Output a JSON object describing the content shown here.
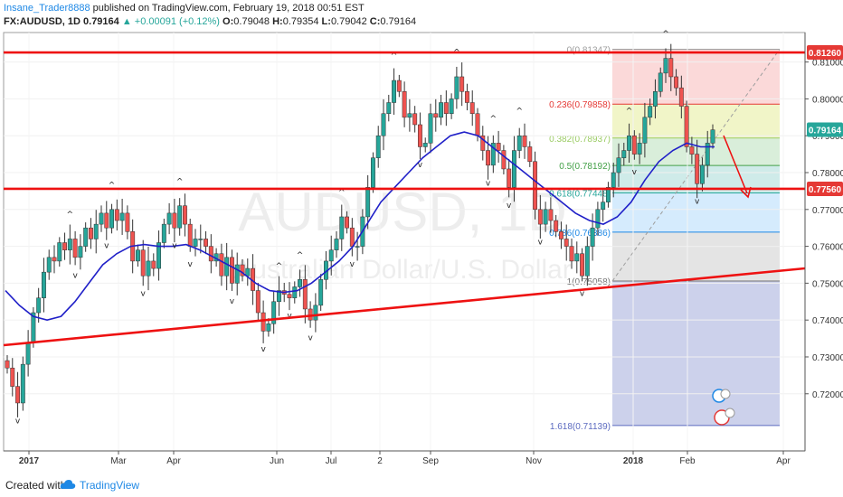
{
  "header": {
    "author": "Insane_Trader8888",
    "published": "published on TradingView.com, February 19, 2018 00:51 EST",
    "symbol": "FX:AUDUSD, 1D",
    "last": "0.79164",
    "change": "▲ +0.00091 (+0.12%)",
    "o_label": "O:",
    "o_val": "0.79048",
    "h_label": "H:",
    "h_val": "0.79354",
    "l_label": "L:",
    "l_val": "0.79042",
    "c_label": "C:",
    "c_val": "0.79164"
  },
  "watermark": {
    "symbol": "AUDUSD, 1D",
    "description": "Australian Dollar/U.S. Dollar"
  },
  "footer": {
    "created_with": "Created with",
    "brand": "TradingView"
  },
  "colors": {
    "candle_up": "#26a69a",
    "candle_down": "#ef5350",
    "ma": "#2020c8",
    "lines": "#ee1111",
    "price_tag": "#e53935",
    "current_tag": "#26a69a"
  },
  "chart_data": {
    "type": "candlestick",
    "symbol": "FX:AUDUSD",
    "interval": "1D",
    "ylim": [
      0.7045,
      0.818
    ],
    "x_ticks": [
      "2017",
      "Mar",
      "Apr",
      "Jun",
      "Jul",
      "2",
      "Sep",
      "Nov",
      "2018",
      "Feb",
      "Apr"
    ],
    "y_ticks": [
      "0.81000",
      "0.80000",
      "0.79000",
      "0.78000",
      "0.77000",
      "0.76000",
      "0.75000",
      "0.74000",
      "0.73000",
      "0.72000"
    ],
    "price_tags": [
      {
        "label": "0.81260",
        "kind": "level"
      },
      {
        "label": "0.79164",
        "kind": "current"
      },
      {
        "label": "0.77560",
        "kind": "level"
      }
    ],
    "horizontal_levels": [
      0.8126,
      0.7756
    ],
    "fibonacci": [
      {
        "label": "0(0.81347)",
        "value": 0.81347,
        "color": "#9e9e9e",
        "fill": "rgba(239,83,80,0.22)"
      },
      {
        "label": "0.236(0.79858)",
        "value": 0.79858,
        "color": "#e53935",
        "fill": "rgba(205,220,57,0.28)"
      },
      {
        "label": "0.382(0.78937)",
        "value": 0.78937,
        "color": "#9ccc65",
        "fill": "rgba(102,187,106,0.25)"
      },
      {
        "label": "0.5(0.78192)",
        "value": 0.78192,
        "color": "#43a047",
        "fill": "rgba(38,166,154,0.22)"
      },
      {
        "label": "0.618(0.77448)",
        "value": 0.77448,
        "color": "#26a69a",
        "fill": "rgba(66,165,245,0.22)"
      },
      {
        "label": "0.786(0.76386)",
        "value": 0.76386,
        "color": "#1e88e5",
        "fill": "rgba(158,158,158,0.28)"
      },
      {
        "label": "1(0.75058)",
        "value": 0.75058,
        "color": "#757575",
        "fill": "rgba(121,134,203,0.38)"
      },
      {
        "label": "1.618(0.71139)",
        "value": 0.71139,
        "color": "#5c6bc0",
        "fill": null
      }
    ],
    "series_close": [
      0.727,
      0.722,
      0.7175,
      0.728,
      0.734,
      0.742,
      0.746,
      0.753,
      0.757,
      0.756,
      0.761,
      0.759,
      0.762,
      0.757,
      0.76,
      0.765,
      0.762,
      0.766,
      0.769,
      0.765,
      0.77,
      0.767,
      0.769,
      0.764,
      0.756,
      0.759,
      0.752,
      0.756,
      0.754,
      0.761,
      0.766,
      0.769,
      0.765,
      0.771,
      0.766,
      0.76,
      0.762,
      0.762,
      0.76,
      0.756,
      0.758,
      0.752,
      0.757,
      0.75,
      0.755,
      0.752,
      0.754,
      0.748,
      0.742,
      0.737,
      0.739,
      0.745,
      0.748,
      0.747,
      0.746,
      0.749,
      0.751,
      0.743,
      0.74,
      0.744,
      0.751,
      0.756,
      0.759,
      0.762,
      0.768,
      0.765,
      0.76,
      0.76,
      0.768,
      0.776,
      0.784,
      0.79,
      0.796,
      0.799,
      0.805,
      0.802,
      0.795,
      0.796,
      0.793,
      0.787,
      0.788,
      0.796,
      0.795,
      0.799,
      0.796,
      0.8,
      0.806,
      0.802,
      0.799,
      0.796,
      0.79,
      0.786,
      0.782,
      0.788,
      0.786,
      0.781,
      0.776,
      0.786,
      0.79,
      0.787,
      0.783,
      0.77,
      0.766,
      0.77,
      0.767,
      0.764,
      0.762,
      0.76,
      0.756,
      0.758,
      0.752,
      0.76,
      0.765,
      0.77,
      0.772,
      0.776,
      0.78,
      0.784,
      0.786,
      0.79,
      0.785,
      0.788,
      0.795,
      0.798,
      0.802,
      0.807,
      0.811,
      0.806,
      0.803,
      0.798,
      0.787,
      0.785,
      0.777,
      0.782,
      0.788,
      0.7916
    ],
    "moving_average_close": [
      0.748,
      0.744,
      0.741,
      0.74,
      0.741,
      0.745,
      0.75,
      0.755,
      0.758,
      0.76,
      0.7605,
      0.76,
      0.76,
      0.7605,
      0.759,
      0.757,
      0.755,
      0.753,
      0.75,
      0.748,
      0.7475,
      0.748,
      0.75,
      0.753,
      0.756,
      0.76,
      0.766,
      0.772,
      0.776,
      0.78,
      0.784,
      0.787,
      0.79,
      0.791,
      0.79,
      0.787,
      0.784,
      0.781,
      0.778,
      0.775,
      0.772,
      0.769,
      0.767,
      0.766,
      0.768,
      0.772,
      0.778,
      0.783,
      0.786,
      0.788,
      0.787,
      0.787
    ]
  }
}
